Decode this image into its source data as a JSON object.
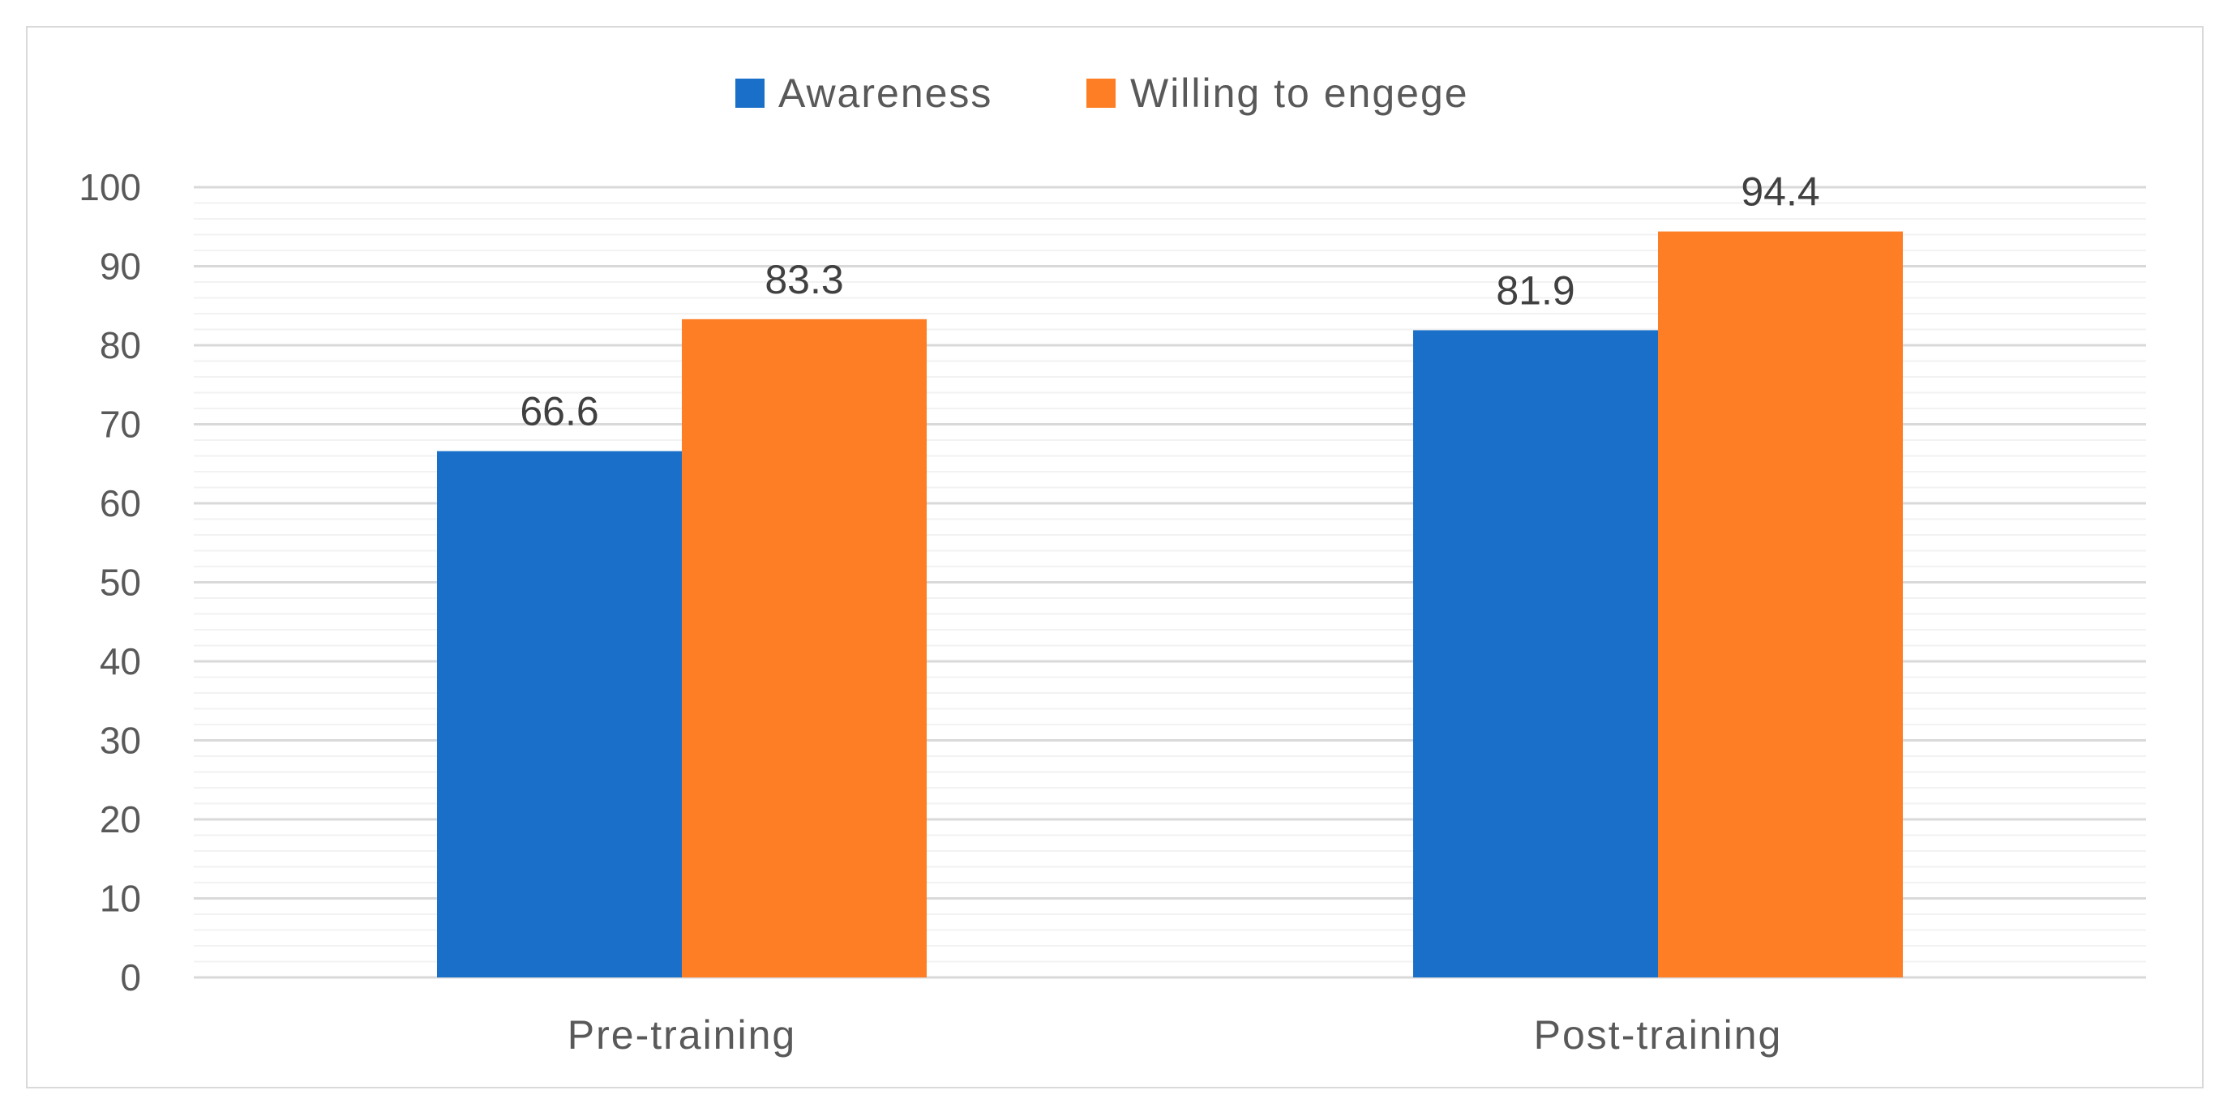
{
  "chart_data": {
    "type": "bar",
    "categories": [
      "Pre-training",
      "Post-training"
    ],
    "series": [
      {
        "name": "Awareness",
        "values": [
          66.6,
          81.9
        ],
        "color": "#1a70c8"
      },
      {
        "name": "Willing to engege",
        "values": [
          83.3,
          94.4
        ],
        "color": "#fd7e25"
      }
    ],
    "data_labels": [
      [
        "66.6",
        "81.9"
      ],
      [
        "83.3",
        "94.4"
      ]
    ],
    "y_ticks": [
      "0",
      "10",
      "20",
      "30",
      "40",
      "50",
      "60",
      "70",
      "80",
      "90",
      "100"
    ],
    "ylim": [
      0,
      100
    ],
    "major_tick_step": 10,
    "minor_tick_step": 2,
    "grid": true,
    "legend_position": "top",
    "title": "",
    "xlabel": "",
    "ylabel": ""
  }
}
